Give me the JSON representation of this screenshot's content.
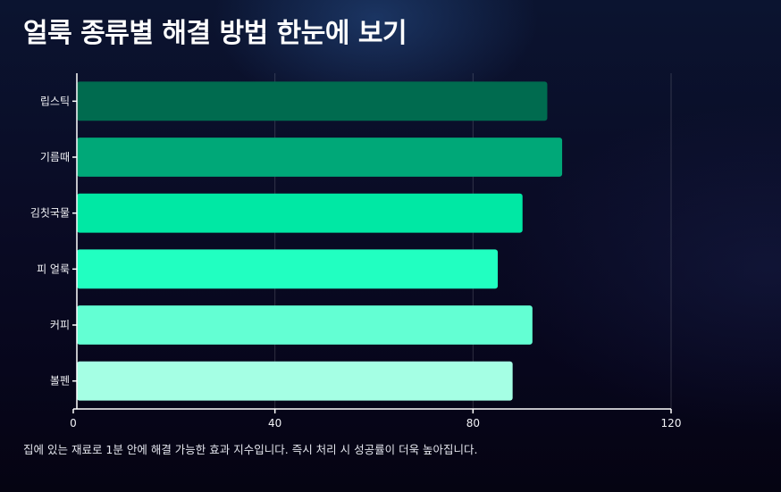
{
  "title": "얼룩 종류별 해결 방법 한눈에 보기",
  "caption": "집에 있는 재료로 1분 안에 해결 가능한 효과 지수입니다. 즉시 처리 시 성공률이 더욱 높아집니다.",
  "chart_data": {
    "type": "bar",
    "orientation": "horizontal",
    "categories": [
      "립스틱",
      "기름때",
      "김칫국물",
      "피 얼룩",
      "커피",
      "볼펜"
    ],
    "values": [
      95,
      98,
      90,
      85,
      92,
      88
    ],
    "colors": [
      "#006b4f",
      "#00a878",
      "#00e8a4",
      "#21ffc1",
      "#63ffd3",
      "#a5ffe4"
    ],
    "xlim": [
      0,
      120
    ],
    "xticks": [
      0,
      40,
      80,
      120
    ],
    "grid": true,
    "title": "얼룩 종류별 해결 방법 한눈에 보기"
  }
}
